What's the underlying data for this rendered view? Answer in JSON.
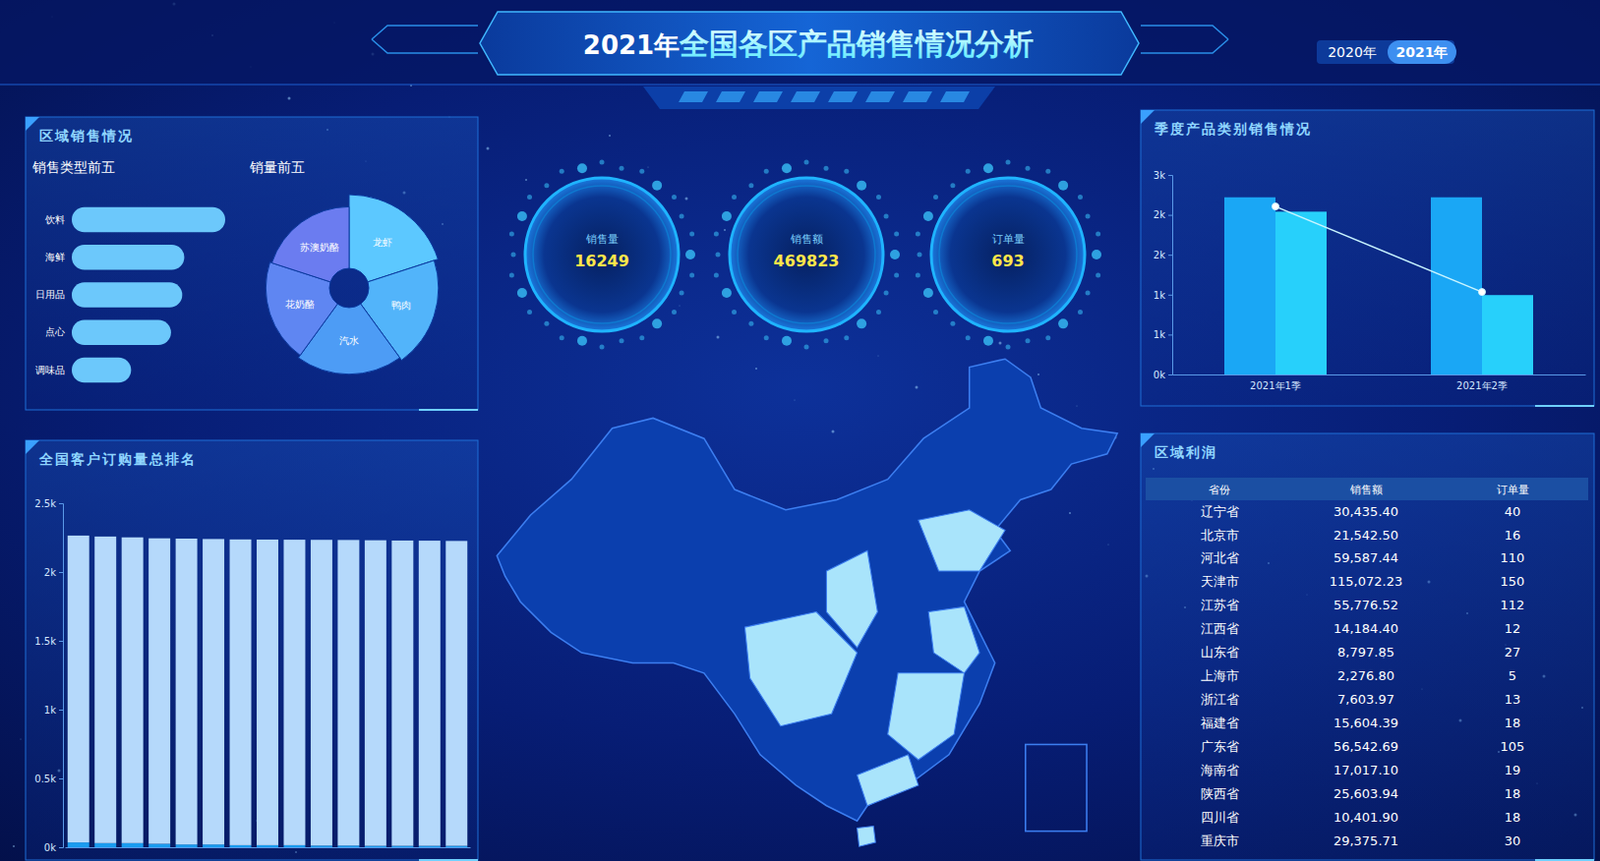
{
  "header": {
    "title_year": "2021年",
    "title": "全国各区产品销售情况分析",
    "years": [
      "2020年",
      "2021年"
    ]
  },
  "kpis": [
    {
      "label": "销售量",
      "value": 16249
    },
    {
      "label": "销售额",
      "value": 469823
    },
    {
      "label": "订单量",
      "value": 693
    }
  ],
  "chart_data": [
    {
      "type": "bar",
      "title": "区域销售情况",
      "subtitle": "销售类型前五",
      "orientation": "horizontal",
      "tick_labels": "y",
      "categories": [
        "饮料",
        "海鲜",
        "日用品",
        "点心",
        "调味品"
      ],
      "values": [
        150,
        110,
        108,
        97,
        58
      ],
      "color": "#6cc8fb"
    },
    {
      "type": "rose",
      "title": "销量前五",
      "categories": [
        "龙虾",
        "鸭肉",
        "汽水",
        "花奶酪",
        "苏澳奶酪"
      ],
      "values": [
        92,
        88,
        85,
        82,
        80
      ],
      "colors": [
        "#5cc8ff",
        "#52b4fa",
        "#4d9cf5",
        "#5f86f2",
        "#6b7cf0"
      ]
    },
    {
      "type": "bar",
      "title": "季度产品类别销售情况",
      "categories": [
        "2021年1季",
        "2021年2季"
      ],
      "series": [
        {
          "color": "#1aa7f5",
          "values": [
            2220,
            2220
          ]
        },
        {
          "color": "#27d0fb",
          "values": [
            2040,
            995
          ]
        },
        {
          "type": "line",
          "color": "#c8f4ff",
          "marker": "circle",
          "values": [
            2105,
            1033
          ]
        }
      ],
      "ylim": [
        0,
        2500
      ],
      "yticks": [
        {
          "value": 0,
          "label": "0k"
        },
        {
          "value": 500,
          "label": "1k"
        },
        {
          "value": 1000,
          "label": "1k"
        },
        {
          "value": 1500,
          "label": "2k"
        },
        {
          "value": 2000,
          "label": "2k"
        },
        {
          "value": 2500,
          "label": "3k"
        }
      ]
    },
    {
      "type": "bar",
      "title": "全国客户订购量总排名",
      "stacked": true,
      "tick_labels": "y",
      "categories": [
        null,
        null,
        null,
        null,
        null,
        null,
        null,
        null,
        null,
        null,
        null,
        null,
        null,
        null,
        null
      ],
      "series": [
        {
          "color": "#1a9cf0",
          "values": [
            35,
            30,
            30,
            25,
            20,
            20,
            15,
            15,
            15,
            12,
            12,
            10,
            10,
            10,
            10
          ]
        },
        {
          "color": "#b5d9fb",
          "values": [
            2230,
            2228,
            2222,
            2220,
            2223,
            2220,
            2222,
            2221,
            2220,
            2222,
            2221,
            2221,
            2219,
            2218,
            2216
          ]
        }
      ],
      "ylim": [
        0,
        2500
      ],
      "yticks": [
        {
          "value": 0,
          "label": "0k"
        },
        {
          "value": 500,
          "label": "0.5k"
        },
        {
          "value": 1000,
          "label": "1k"
        },
        {
          "value": 1500,
          "label": "1.5k"
        },
        {
          "value": 2000,
          "label": "2k"
        },
        {
          "value": 2500,
          "label": "2.5k"
        }
      ]
    }
  ],
  "table": {
    "title": "区域利润",
    "columns": [
      "省份",
      "销售额",
      "订单量"
    ],
    "rows": [
      [
        "辽宁省",
        "30,435.40",
        40
      ],
      [
        "北京市",
        "21,542.50",
        16
      ],
      [
        "河北省",
        "59,587.44",
        110
      ],
      [
        "天津市",
        "115,072.23",
        150
      ],
      [
        "江苏省",
        "55,776.52",
        112
      ],
      [
        "江西省",
        "14,184.40",
        12
      ],
      [
        "山东省",
        "8,797.85",
        27
      ],
      [
        "上海市",
        "2,276.80",
        5
      ],
      [
        "浙江省",
        "7,603.97",
        13
      ],
      [
        "福建省",
        "15,604.39",
        18
      ],
      [
        "广东省",
        "56,542.69",
        105
      ],
      [
        "海南省",
        "17,017.10",
        19
      ],
      [
        "陕西省",
        "25,603.94",
        18
      ],
      [
        "四川省",
        "10,401.90",
        18
      ],
      [
        "重庆市",
        "29,375.71",
        30
      ]
    ]
  }
}
